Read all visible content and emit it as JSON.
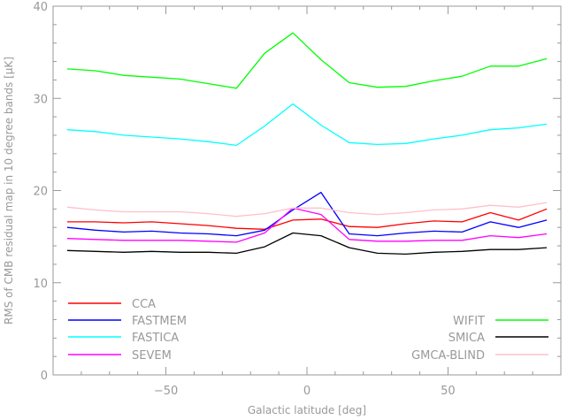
{
  "chart_data": {
    "type": "line",
    "title": "",
    "xlabel": "Galactic latitude [deg]",
    "ylabel": "RMS of CMB residual map in 10 degree bands [μK]",
    "xlim": [
      -90,
      90
    ],
    "ylim": [
      0,
      40
    ],
    "xticks": [
      -50,
      0,
      50
    ],
    "yticks": [
      0,
      10,
      20,
      30,
      40
    ],
    "x": [
      -85,
      -75,
      -65,
      -55,
      -45,
      -35,
      -25,
      -15,
      -5,
      5,
      15,
      25,
      35,
      45,
      55,
      65,
      75,
      85
    ],
    "series": [
      {
        "name": "CCA",
        "color": "#ff0000",
        "values": [
          16.6,
          16.6,
          16.5,
          16.6,
          16.4,
          16.2,
          15.9,
          15.8,
          16.8,
          16.9,
          16.1,
          16.0,
          16.4,
          16.7,
          16.6,
          17.6,
          16.8,
          18.0
        ]
      },
      {
        "name": "FASTMEM",
        "color": "#0000ff",
        "values": [
          16.0,
          15.7,
          15.5,
          15.6,
          15.4,
          15.3,
          15.1,
          15.7,
          17.9,
          19.8,
          15.3,
          15.1,
          15.4,
          15.6,
          15.5,
          16.6,
          16.0,
          16.8
        ]
      },
      {
        "name": "FASTICA",
        "color": "#00ffff",
        "values": [
          26.6,
          26.4,
          26.0,
          25.8,
          25.6,
          25.3,
          24.9,
          27.0,
          29.4,
          27.1,
          25.2,
          25.0,
          25.1,
          25.6,
          26.0,
          26.6,
          26.8,
          27.2
        ]
      },
      {
        "name": "SEVEM",
        "color": "#ff00ff",
        "values": [
          14.8,
          14.7,
          14.6,
          14.6,
          14.6,
          14.5,
          14.4,
          15.4,
          18.1,
          17.4,
          14.7,
          14.5,
          14.5,
          14.6,
          14.6,
          15.1,
          14.9,
          15.3
        ]
      },
      {
        "name": "WIFIT",
        "color": "#00ff00",
        "values": [
          33.2,
          33.0,
          32.5,
          32.3,
          32.1,
          31.6,
          31.1,
          34.9,
          37.1,
          34.2,
          31.7,
          31.2,
          31.3,
          31.9,
          32.4,
          33.5,
          33.5,
          34.3
        ]
      },
      {
        "name": "SMICA",
        "color": "#000000",
        "values": [
          13.5,
          13.4,
          13.3,
          13.4,
          13.3,
          13.3,
          13.2,
          13.9,
          15.4,
          15.1,
          13.8,
          13.2,
          13.1,
          13.3,
          13.4,
          13.6,
          13.6,
          13.8
        ]
      },
      {
        "name": "GMCA-BLIND",
        "color": "#ffc0cb",
        "values": [
          18.2,
          17.9,
          17.7,
          17.7,
          17.7,
          17.5,
          17.2,
          17.5,
          18.1,
          18.1,
          17.6,
          17.4,
          17.6,
          17.9,
          18.0,
          18.4,
          18.2,
          18.7
        ]
      }
    ],
    "legend_left": [
      "CCA",
      "FASTMEM",
      "FASTICA",
      "SEVEM"
    ],
    "legend_right": [
      "WIFIT",
      "SMICA",
      "GMCA-BLIND"
    ],
    "grid": false,
    "legend_position": "bottom"
  }
}
